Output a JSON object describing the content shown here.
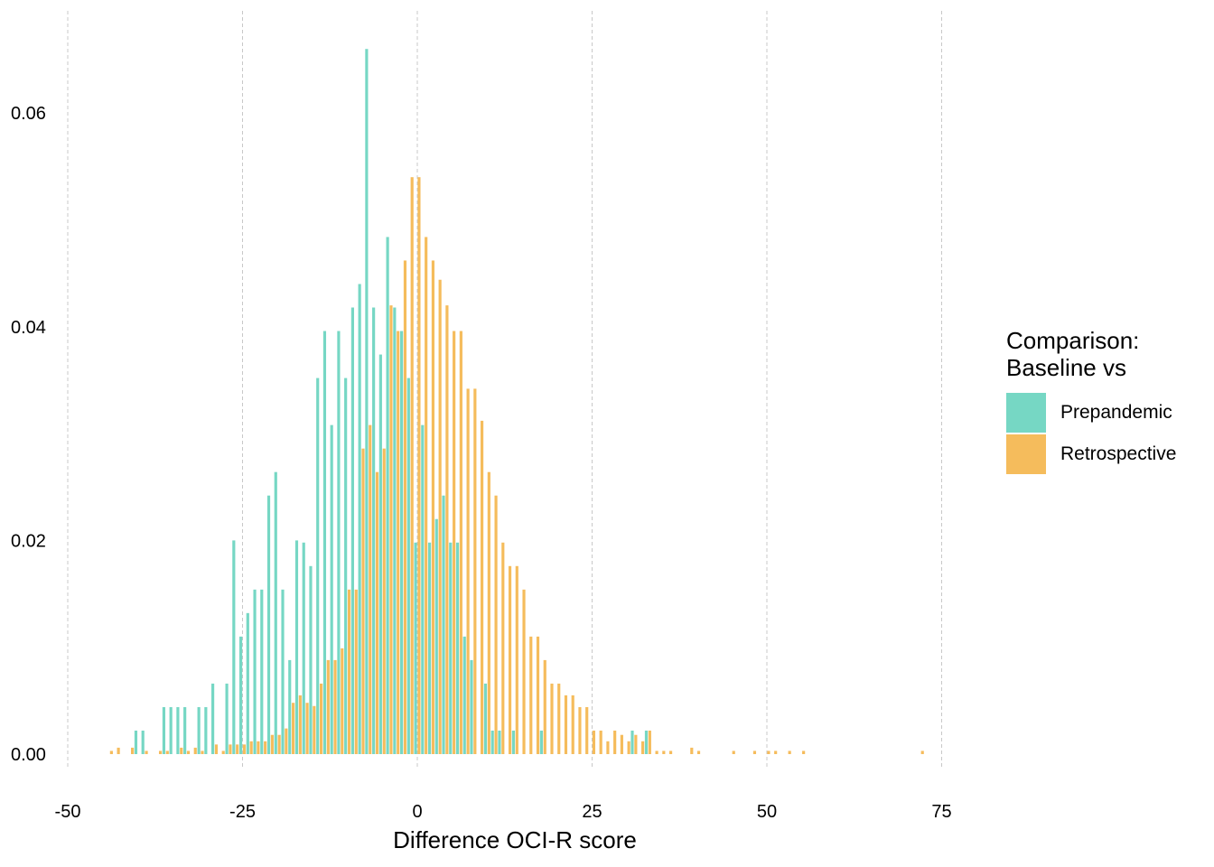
{
  "chart_data": {
    "type": "bar",
    "xlabel": "Difference OCI-R score",
    "ylabel": "",
    "xlim": [
      -50,
      75
    ],
    "ylim": [
      0,
      0.066
    ],
    "x_ticks": [
      "-50",
      "-25",
      "0",
      "25",
      "50",
      "75"
    ],
    "y_ticks": [
      "0.00",
      "0.02",
      "0.04",
      "0.06"
    ],
    "grid": "vertical dashed",
    "legend": {
      "title_lines": [
        "Comparison:",
        "Baseline vs"
      ],
      "placement": "right"
    },
    "series": [
      {
        "name": "Prepandemic",
        "color": "#76d7c4",
        "x": [
          -40,
          -39,
          -36,
          -35,
          -34,
          -33,
          -31,
          -30,
          -29,
          -27,
          -26,
          -25,
          -24,
          -23,
          -22,
          -21,
          -20,
          -19,
          -18,
          -17,
          -16,
          -15,
          -14,
          -13,
          -12,
          -11,
          -10,
          -9,
          -8,
          -7,
          -6,
          -5,
          -4,
          -3,
          -2,
          -1,
          0,
          1,
          2,
          3,
          4,
          5,
          6,
          7,
          8,
          10,
          11,
          12,
          14,
          18,
          31,
          33
        ],
        "values": [
          0.0022,
          0.0022,
          0.0044,
          0.0044,
          0.0044,
          0.0044,
          0.0044,
          0.0044,
          0.0066,
          0.0066,
          0.02,
          0.011,
          0.0132,
          0.0154,
          0.0154,
          0.0242,
          0.0264,
          0.0154,
          0.0088,
          0.02,
          0.0198,
          0.0176,
          0.0352,
          0.0396,
          0.0308,
          0.0396,
          0.0352,
          0.0418,
          0.044,
          0.066,
          0.0418,
          0.0374,
          0.0484,
          0.0418,
          0.0396,
          0.0352,
          0.0198,
          0.0308,
          0.0198,
          0.022,
          0.0242,
          0.0198,
          0.0198,
          0.011,
          0.0088,
          0.0066,
          0.0022,
          0.0022,
          0.0022,
          0.0022,
          0.0022,
          0.0022
        ]
      },
      {
        "name": "Retrospective",
        "color": "#f5bc5c",
        "x": [
          -44,
          -43,
          -41,
          -39,
          -37,
          -36,
          -34,
          -33,
          -32,
          -31,
          -29,
          -28,
          -27,
          -26,
          -25,
          -24,
          -23,
          -22,
          -21,
          -20,
          -19,
          -18,
          -17,
          -16,
          -15,
          -14,
          -13,
          -12,
          -11,
          -10,
          -9,
          -8,
          -7,
          -6,
          -5,
          -4,
          -3,
          -2,
          -1,
          0,
          1,
          2,
          3,
          4,
          5,
          6,
          7,
          8,
          9,
          10,
          11,
          12,
          13,
          14,
          15,
          16,
          17,
          18,
          19,
          20,
          21,
          22,
          23,
          24,
          25,
          26,
          27,
          28,
          29,
          30,
          31,
          32,
          33,
          34,
          35,
          36,
          39,
          40,
          45,
          48,
          50,
          51,
          53,
          55,
          72
        ],
        "values": [
          0.0003,
          0.0006,
          0.0006,
          0.0003,
          0.0003,
          0.0003,
          0.0006,
          0.0003,
          0.0006,
          0.0003,
          0.0009,
          0.0003,
          0.0009,
          0.0009,
          0.0009,
          0.0012,
          0.0012,
          0.0012,
          0.0018,
          0.0018,
          0.0024,
          0.0048,
          0.0055,
          0.0048,
          0.0045,
          0.0066,
          0.0088,
          0.0088,
          0.0099,
          0.0154,
          0.0154,
          0.0286,
          0.0308,
          0.0264,
          0.0286,
          0.042,
          0.0396,
          0.0462,
          0.054,
          0.054,
          0.0484,
          0.0462,
          0.0444,
          0.042,
          0.0396,
          0.0396,
          0.0342,
          0.0342,
          0.0312,
          0.0264,
          0.0242,
          0.0198,
          0.0176,
          0.0176,
          0.0154,
          0.011,
          0.011,
          0.0088,
          0.0066,
          0.0066,
          0.0055,
          0.0055,
          0.0044,
          0.0044,
          0.0022,
          0.0022,
          0.0012,
          0.0022,
          0.0018,
          0.0012,
          0.0018,
          0.0012,
          0.0022,
          0.0003,
          0.0003,
          0.0003,
          0.0006,
          0.0003,
          0.0003,
          0.0003,
          0.0003,
          0.0003,
          0.0003,
          0.0003,
          0.0003
        ]
      }
    ]
  }
}
